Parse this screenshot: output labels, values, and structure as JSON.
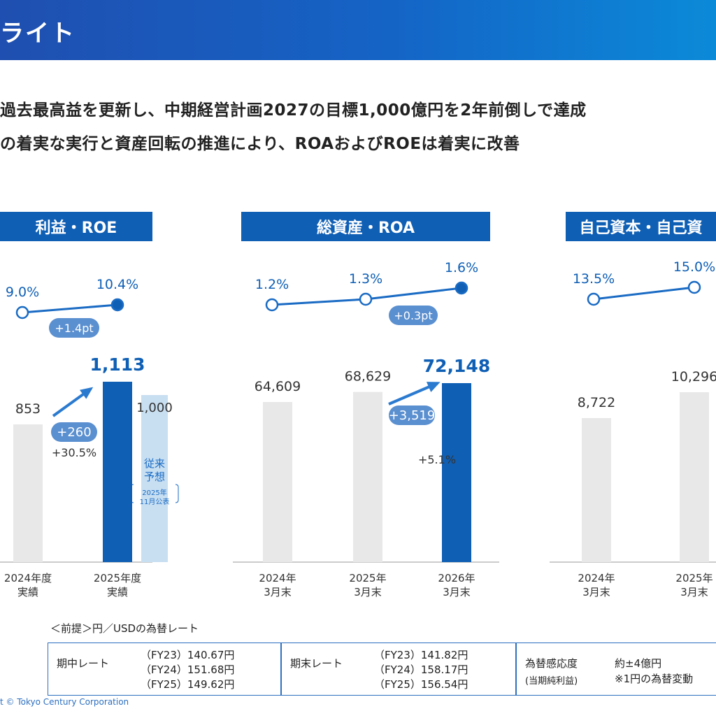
{
  "header": {
    "title": "ライト"
  },
  "bullets": [
    "過去最高益を更新し、中期経営計画2027の目標1,000億円を2年前倒しで達成",
    "の着実な実行と資産回転の推進により、ROAおよびROEは着実に改善"
  ],
  "panels": [
    {
      "title": "利益・ROE"
    },
    {
      "title": "総資産・ROA"
    },
    {
      "title": "自己資本・自己資"
    }
  ],
  "chart_data": [
    {
      "type": "bar",
      "title": "利益・ROE",
      "categories": [
        "2024年度\n実績",
        "2025年度\n実績"
      ],
      "values": [
        853,
        1113
      ],
      "value_labels": [
        "853",
        "1,113"
      ],
      "forecast": {
        "value": 1000,
        "label": "1,000",
        "note_main": "従来\n予想",
        "note_sub": "2025年\n11月公表"
      },
      "change": {
        "abs": "+260",
        "pct": "+30.5%"
      },
      "ratio_line": {
        "labels": [
          "9.0%",
          "10.4%"
        ],
        "values": [
          9.0,
          10.4
        ],
        "change": "+1.4pt"
      }
    },
    {
      "type": "bar",
      "title": "総資産・ROA",
      "categories": [
        "2024年\n3月末",
        "2025年\n3月末",
        "2026年\n3月末"
      ],
      "values": [
        64609,
        68629,
        72148
      ],
      "value_labels": [
        "64,609",
        "68,629",
        "72,148"
      ],
      "change": {
        "abs": "+3,519",
        "pct": "+5.1%"
      },
      "ratio_line": {
        "labels": [
          "1.2%",
          "1.3%",
          "1.6%"
        ],
        "values": [
          1.2,
          1.3,
          1.6
        ],
        "change": "+0.3pt"
      }
    },
    {
      "type": "bar",
      "title": "自己資本・自己資",
      "categories": [
        "2024年\n3月末",
        "2025年\n3月末"
      ],
      "values": [
        8722,
        10296
      ],
      "value_labels": [
        "8,722",
        "10,296"
      ],
      "ratio_line": {
        "labels": [
          "13.5%",
          "15.0%"
        ],
        "values": [
          13.5,
          15.0
        ]
      }
    }
  ],
  "fx": {
    "note": "＜前提＞円／USDの為替レート",
    "avg_label": "期中レート",
    "avg_rates": [
      "（FY23）140.67円",
      "（FY24）151.68円",
      "（FY25）149.62円"
    ],
    "end_label": "期末レート",
    "end_rates": [
      "（FY23）141.82円",
      "（FY24）158.17円",
      "（FY25）156.54円"
    ],
    "sens_label": "為替感応度",
    "sens_sub": "(当期純利益)",
    "sens_value": "約±4億円",
    "sens_note": "※1円の為替変動"
  },
  "footer": {
    "copyright": "t © Tokyo Century Corporation"
  },
  "colors": {
    "primary": "#0f5fb5",
    "line": "#1a6bc4",
    "bar_grey": "#e8e8e8",
    "forecast": "#c8dff2",
    "pill": "#5a8fd0"
  }
}
